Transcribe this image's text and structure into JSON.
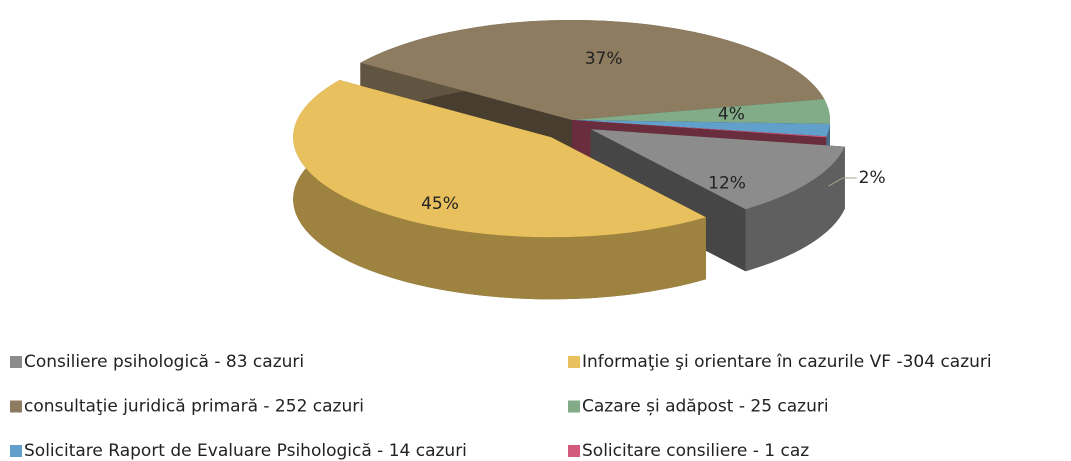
{
  "chart_data": {
    "type": "pie3d",
    "categories": [
      "Consiliere psihologică - 83 cazuri",
      "Informaţie şi orientare în cazurile VF -304 cazuri",
      "consultaţie juridică primară - 252 cazuri",
      "Cazare și adăpost - 25 cazuri",
      "Solicitare Raport de Evaluare Psihologică - 14 cazuri",
      "Solicitare consiliere - 1 caz"
    ],
    "values": [
      12,
      45,
      37,
      4,
      2,
      0.15
    ],
    "value_labels": [
      "12%",
      "45%",
      "37%",
      "4%",
      "2%",
      null
    ],
    "colors": [
      "#8c8c8c",
      "#e9c05e",
      "#8e7c60",
      "#82ab88",
      "#62a0cc",
      "#d25a7a"
    ],
    "legend": "bottom"
  }
}
